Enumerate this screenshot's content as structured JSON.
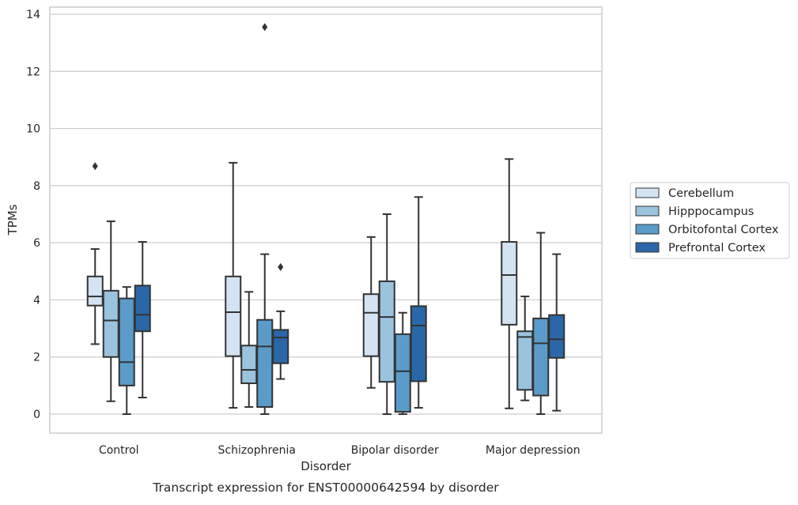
{
  "caption": "Transcript expression for ENST00000642594 by disorder",
  "chart_data": {
    "type": "box",
    "xlabel": "Disorder",
    "ylabel": "TPMs",
    "categories": [
      "Control",
      "Schizophrenia",
      "Bipolar disorder",
      "Major depression"
    ],
    "ylim": [
      -0.65,
      14.25
    ],
    "yticks": [
      0,
      2,
      4,
      6,
      8,
      10,
      12,
      14
    ],
    "grid": "horizontal",
    "legend_position": "outside-right",
    "series": [
      {
        "name": "Cerebellum",
        "color": "#d3e3f2",
        "boxes": [
          {
            "whisker_low": 2.45,
            "q1": 3.8,
            "median": 4.12,
            "q3": 4.82,
            "whisker_high": 5.78,
            "outliers": [
              8.68
            ]
          },
          {
            "whisker_low": 0.22,
            "q1": 2.03,
            "median": 3.57,
            "q3": 4.82,
            "whisker_high": 8.8,
            "outliers": []
          },
          {
            "whisker_low": 0.92,
            "q1": 2.03,
            "median": 3.55,
            "q3": 4.2,
            "whisker_high": 6.2,
            "outliers": []
          },
          {
            "whisker_low": 0.2,
            "q1": 3.13,
            "median": 4.87,
            "q3": 6.03,
            "whisker_high": 8.93,
            "outliers": []
          }
        ]
      },
      {
        "name": "Hipppocampus",
        "color": "#9ac3de",
        "boxes": [
          {
            "whisker_low": 0.45,
            "q1": 2.0,
            "median": 3.28,
            "q3": 4.32,
            "whisker_high": 6.75,
            "outliers": []
          },
          {
            "whisker_low": 0.25,
            "q1": 1.08,
            "median": 1.55,
            "q3": 2.4,
            "whisker_high": 4.28,
            "outliers": []
          },
          {
            "whisker_low": 0.0,
            "q1": 1.13,
            "median": 3.4,
            "q3": 4.65,
            "whisker_high": 7.0,
            "outliers": []
          },
          {
            "whisker_low": 0.48,
            "q1": 0.85,
            "median": 2.7,
            "q3": 2.9,
            "whisker_high": 4.12,
            "outliers": []
          }
        ]
      },
      {
        "name": "Orbitofontal Cortex",
        "color": "#5a9bc9",
        "boxes": [
          {
            "whisker_low": 0.0,
            "q1": 1.0,
            "median": 1.82,
            "q3": 4.05,
            "whisker_high": 4.45,
            "outliers": []
          },
          {
            "whisker_low": 0.0,
            "q1": 0.25,
            "median": 2.37,
            "q3": 3.3,
            "whisker_high": 5.6,
            "outliers": [
              13.55
            ]
          },
          {
            "whisker_low": 0.0,
            "q1": 0.08,
            "median": 1.5,
            "q3": 2.8,
            "whisker_high": 3.55,
            "outliers": []
          },
          {
            "whisker_low": 0.0,
            "q1": 0.65,
            "median": 2.48,
            "q3": 3.35,
            "whisker_high": 6.35,
            "outliers": []
          }
        ]
      },
      {
        "name": "Prefrontal Cortex",
        "color": "#2a67a8",
        "boxes": [
          {
            "whisker_low": 0.58,
            "q1": 2.9,
            "median": 3.48,
            "q3": 4.5,
            "whisker_high": 6.03,
            "outliers": []
          },
          {
            "whisker_low": 1.23,
            "q1": 1.78,
            "median": 2.68,
            "q3": 2.95,
            "whisker_high": 3.6,
            "outliers": [
              5.15
            ]
          },
          {
            "whisker_low": 0.22,
            "q1": 1.15,
            "median": 3.1,
            "q3": 3.78,
            "whisker_high": 7.6,
            "outliers": []
          },
          {
            "whisker_low": 0.12,
            "q1": 1.97,
            "median": 2.62,
            "q3": 3.47,
            "whisker_high": 5.6,
            "outliers": []
          }
        ]
      }
    ]
  }
}
